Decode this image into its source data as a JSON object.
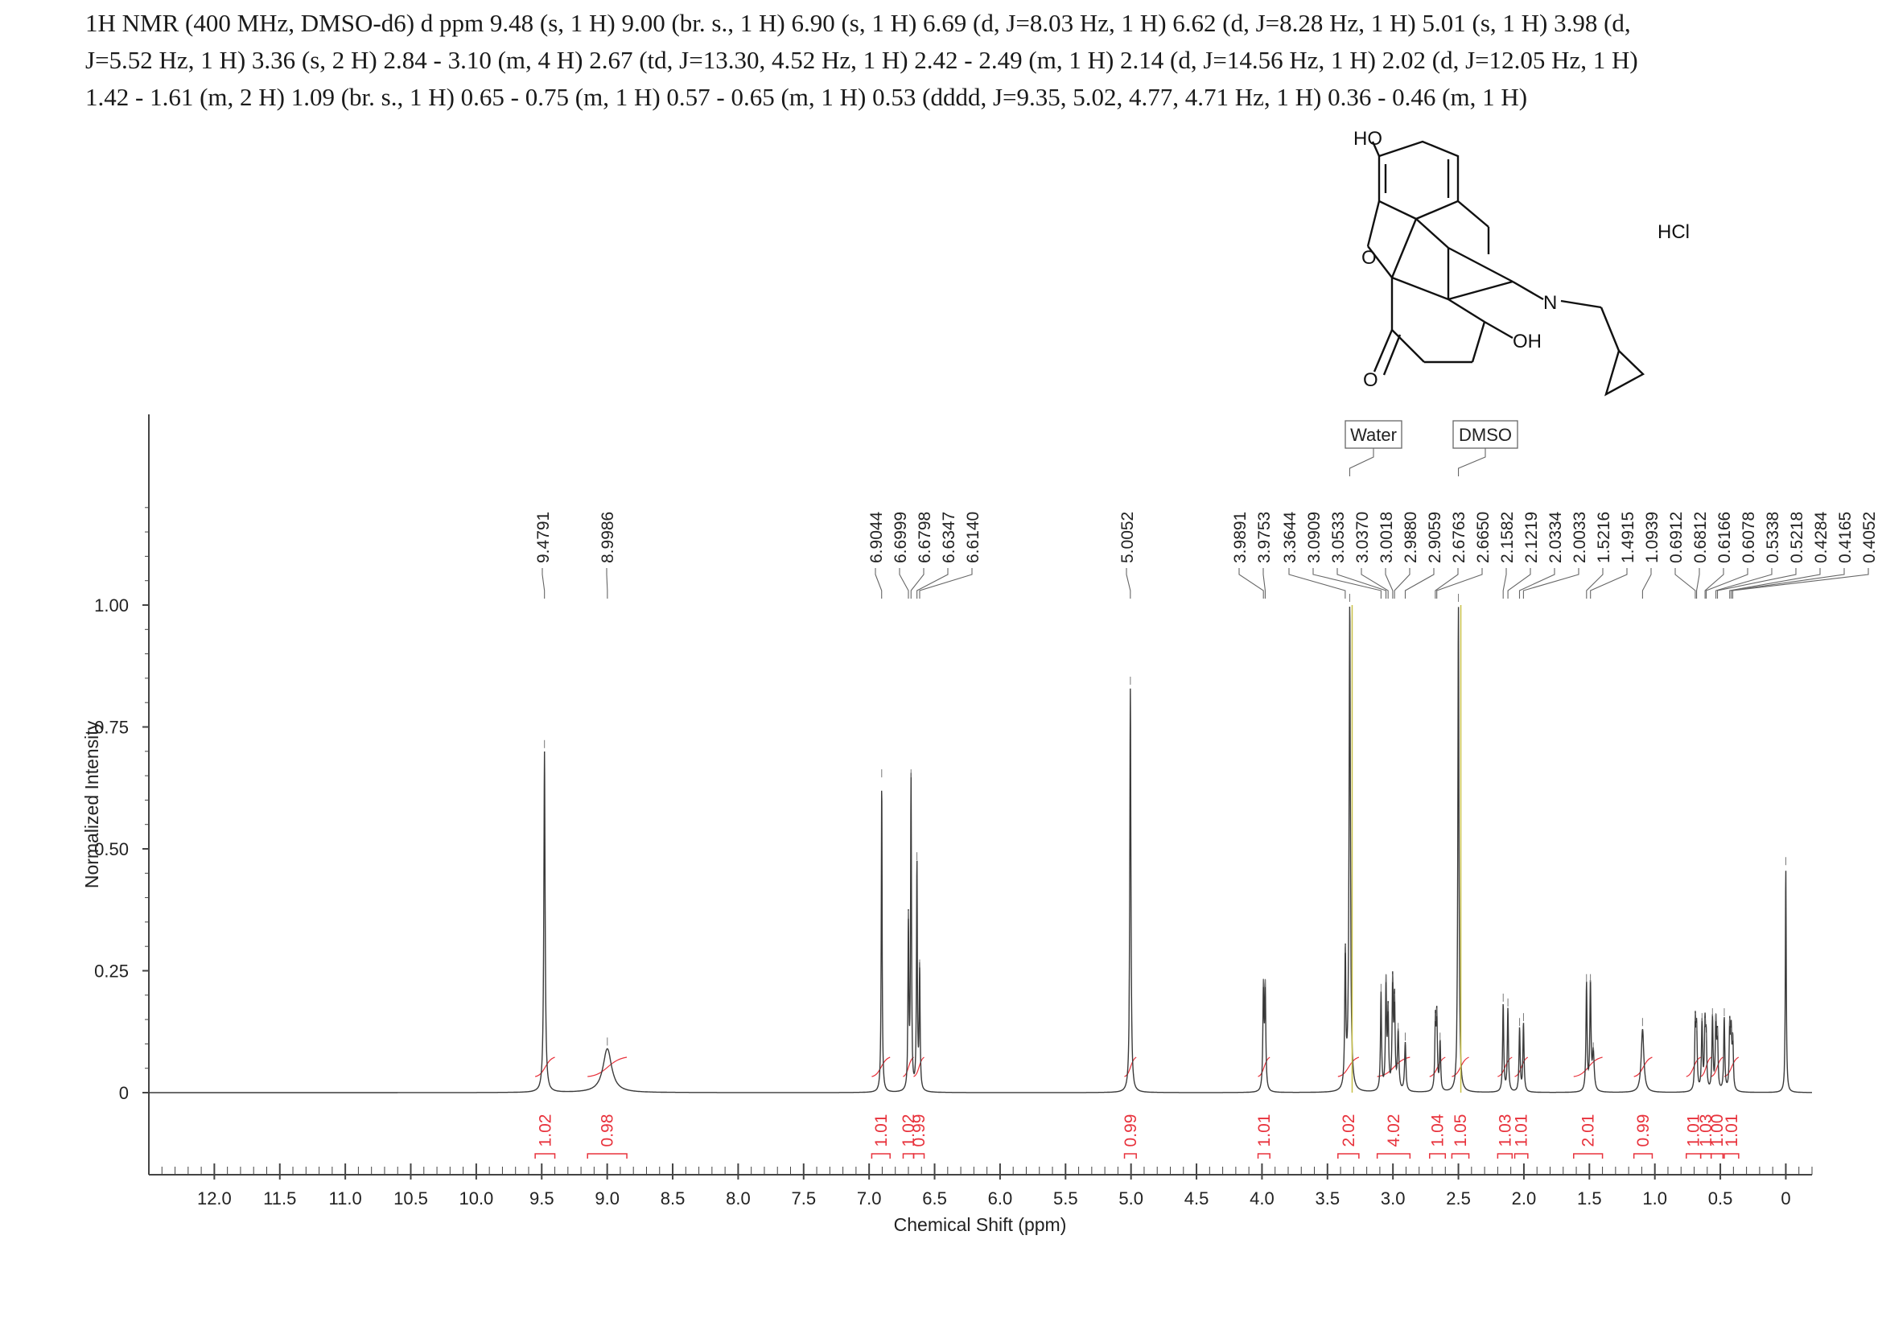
{
  "header": {
    "line1": "1H NMR (400 MHz, DMSO-d6) d ppm 9.48 (s, 1 H) 9.00 (br. s., 1 H) 6.90 (s, 1 H) 6.69 (d, J=8.03 Hz, 1 H) 6.62 (d, J=8.28 Hz, 1 H) 5.01 (s, 1 H) 3.98 (d,",
    "line2": "J=5.52 Hz, 1 H) 3.36 (s, 2 H) 2.84 - 3.10 (m, 4 H) 2.67 (td, J=13.30, 4.52 Hz, 1 H) 2.42 - 2.49 (m, 1 H) 2.14 (d, J=14.56 Hz, 1 H) 2.02 (d, J=12.05 Hz, 1 H)",
    "line3": "1.42 - 1.61 (m, 2 H) 1.09 (br. s., 1 H) 0.65 - 0.75 (m, 1 H) 0.57 - 0.65 (m, 1 H) 0.53 (dddd, J=9.35, 5.02, 4.77, 4.71 Hz, 1 H) 0.36 - 0.46 (m, 1 H)"
  },
  "molecule": {
    "labels": {
      "ho": "HO",
      "o_ring": "O",
      "o_ketone": "O",
      "n": "N",
      "oh": "OH",
      "salt": "HCl"
    }
  },
  "colors": {
    "spectrum": "#3a3a3a",
    "integral": "#e8323c",
    "ref_line": "#c8c048",
    "axis": "#444444"
  },
  "chart_data": {
    "type": "line",
    "xlabel": "Chemical Shift (ppm)",
    "ylabel": "Normalized Intensity",
    "xlim": [
      12.5,
      -0.2
    ],
    "ylim": [
      -0.15,
      1.3
    ],
    "x_ticks": [
      "12.0",
      "11.5",
      "11.0",
      "10.5",
      "10.0",
      "9.5",
      "9.0",
      "8.5",
      "8.0",
      "7.5",
      "7.0",
      "6.5",
      "6.0",
      "5.5",
      "5.0",
      "4.5",
      "4.0",
      "3.5",
      "3.0",
      "2.5",
      "2.0",
      "1.5",
      "1.0",
      "0.5",
      "0"
    ],
    "y_ticks": [
      "0",
      "0.25",
      "0.50",
      "0.75",
      "1.00"
    ],
    "peaks": [
      {
        "ppm": 9.479,
        "h": 0.7,
        "w": 0.006
      },
      {
        "ppm": 8.999,
        "h": 0.09,
        "w": 0.04
      },
      {
        "ppm": 6.904,
        "h": 0.64,
        "w": 0.004
      },
      {
        "ppm": 6.7,
        "h": 0.35,
        "w": 0.004
      },
      {
        "ppm": 6.68,
        "h": 0.64,
        "w": 0.004
      },
      {
        "ppm": 6.635,
        "h": 0.47,
        "w": 0.004
      },
      {
        "ppm": 6.614,
        "h": 0.25,
        "w": 0.004
      },
      {
        "ppm": 5.005,
        "h": 0.83,
        "w": 0.005
      },
      {
        "ppm": 3.989,
        "h": 0.21,
        "w": 0.005
      },
      {
        "ppm": 3.975,
        "h": 0.21,
        "w": 0.005
      },
      {
        "ppm": 3.364,
        "h": 0.28,
        "w": 0.005
      },
      {
        "ppm": 3.33,
        "h": 1.0,
        "w": 0.006
      },
      {
        "ppm": 3.091,
        "h": 0.2,
        "w": 0.005
      },
      {
        "ppm": 3.053,
        "h": 0.22,
        "w": 0.005
      },
      {
        "ppm": 3.037,
        "h": 0.16,
        "w": 0.005
      },
      {
        "ppm": 3.002,
        "h": 0.22,
        "w": 0.005
      },
      {
        "ppm": 2.988,
        "h": 0.18,
        "w": 0.005
      },
      {
        "ppm": 2.96,
        "h": 0.12,
        "w": 0.006
      },
      {
        "ppm": 2.906,
        "h": 0.1,
        "w": 0.006
      },
      {
        "ppm": 2.676,
        "h": 0.14,
        "w": 0.005
      },
      {
        "ppm": 2.665,
        "h": 0.15,
        "w": 0.005
      },
      {
        "ppm": 2.64,
        "h": 0.1,
        "w": 0.005
      },
      {
        "ppm": 2.5,
        "h": 1.0,
        "w": 0.005
      },
      {
        "ppm": 2.158,
        "h": 0.18,
        "w": 0.005
      },
      {
        "ppm": 2.122,
        "h": 0.17,
        "w": 0.005
      },
      {
        "ppm": 2.033,
        "h": 0.13,
        "w": 0.005
      },
      {
        "ppm": 2.003,
        "h": 0.14,
        "w": 0.005
      },
      {
        "ppm": 1.522,
        "h": 0.22,
        "w": 0.005
      },
      {
        "ppm": 1.492,
        "h": 0.22,
        "w": 0.005
      },
      {
        "ppm": 1.47,
        "h": 0.08,
        "w": 0.008
      },
      {
        "ppm": 1.094,
        "h": 0.13,
        "w": 0.012
      },
      {
        "ppm": 0.691,
        "h": 0.14,
        "w": 0.005
      },
      {
        "ppm": 0.681,
        "h": 0.12,
        "w": 0.005
      },
      {
        "ppm": 0.64,
        "h": 0.14,
        "w": 0.005
      },
      {
        "ppm": 0.617,
        "h": 0.13,
        "w": 0.005
      },
      {
        "ppm": 0.608,
        "h": 0.1,
        "w": 0.005
      },
      {
        "ppm": 0.56,
        "h": 0.15,
        "w": 0.005
      },
      {
        "ppm": 0.534,
        "h": 0.14,
        "w": 0.005
      },
      {
        "ppm": 0.522,
        "h": 0.11,
        "w": 0.005
      },
      {
        "ppm": 0.47,
        "h": 0.15,
        "w": 0.005
      },
      {
        "ppm": 0.428,
        "h": 0.13,
        "w": 0.005
      },
      {
        "ppm": 0.417,
        "h": 0.11,
        "w": 0.005
      },
      {
        "ppm": 0.405,
        "h": 0.1,
        "w": 0.005
      },
      {
        "ppm": 0.0,
        "h": 0.46,
        "w": 0.004
      }
    ],
    "peak_labels": [
      "9.4791",
      "8.9986",
      "6.9044",
      "6.6999",
      "6.6798",
      "6.6347",
      "6.6140",
      "5.0052",
      "3.9891",
      "3.9753",
      "3.3644",
      "3.0909",
      "3.0533",
      "3.0370",
      "3.0018",
      "2.9880",
      "2.9059",
      "2.6763",
      "2.6650",
      "2.1582",
      "2.1219",
      "2.0334",
      "2.0033",
      "1.5216",
      "1.4915",
      "1.0939",
      "0.6912",
      "0.6812",
      "0.6166",
      "0.6078",
      "0.5338",
      "0.5218",
      "0.4284",
      "0.4165",
      "0.4052"
    ],
    "annotations": [
      {
        "text": "Water",
        "ppm": 3.33
      },
      {
        "text": "DMSO",
        "ppm": 2.5
      }
    ],
    "integrals": [
      {
        "from": 9.55,
        "to": 9.4,
        "value": "1.02"
      },
      {
        "from": 9.15,
        "to": 8.85,
        "value": "0.98"
      },
      {
        "from": 6.98,
        "to": 6.84,
        "value": "1.01"
      },
      {
        "from": 6.74,
        "to": 6.66,
        "value": "1.02"
      },
      {
        "from": 6.66,
        "to": 6.58,
        "value": "0.99"
      },
      {
        "from": 5.05,
        "to": 4.96,
        "value": "0.99"
      },
      {
        "from": 4.03,
        "to": 3.94,
        "value": "1.01"
      },
      {
        "from": 3.42,
        "to": 3.26,
        "value": "2.02"
      },
      {
        "from": 3.12,
        "to": 2.87,
        "value": "4.02"
      },
      {
        "from": 2.72,
        "to": 2.6,
        "value": "1.04"
      },
      {
        "from": 2.55,
        "to": 2.42,
        "value": "1.05"
      },
      {
        "from": 2.2,
        "to": 2.09,
        "value": "1.03"
      },
      {
        "from": 2.07,
        "to": 1.97,
        "value": "1.01"
      },
      {
        "from": 1.62,
        "to": 1.4,
        "value": "2.01"
      },
      {
        "from": 1.16,
        "to": 1.02,
        "value": "0.99"
      },
      {
        "from": 0.76,
        "to": 0.65,
        "value": "1.01"
      },
      {
        "from": 0.65,
        "to": 0.57,
        "value": "1.03"
      },
      {
        "from": 0.57,
        "to": 0.48,
        "value": "1.00"
      },
      {
        "from": 0.47,
        "to": 0.36,
        "value": "1.01"
      }
    ]
  }
}
